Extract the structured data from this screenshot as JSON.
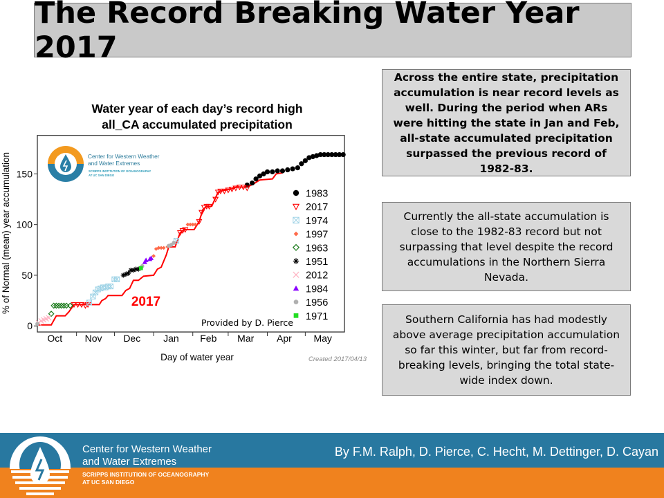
{
  "slide": {
    "title": "The Record Breaking Water Year 2017",
    "notes": [
      "Across the entire state, precipitation accumulation is near record levels as well. During the period when ARs were hitting the state in Jan and Feb, all-state accumulated precipitation surpassed the previous record of 1982-83.",
      "Currently the all-state accumulation is close to the 1982-83 record but not surpassing that level despite the record accumulations in the Northern Sierra Nevada.",
      "Southern California has had modestly above average precipitation accumulation so far this winter, but far from record-breaking levels, bringing the total state-wide index down."
    ]
  },
  "footer": {
    "org_line1": "Center for Western Weather",
    "org_line2": "and Water Extremes",
    "sub_line1": "SCRIPPS INSTITUTION OF OCEANOGRAPHY",
    "sub_line2": "AT UC SAN DIEGO",
    "authors": "By F.M. Ralph, D. Pierce, C. Hecht, M. Dettinger, D. Cayan",
    "colors": {
      "blue": "#2878a0",
      "orange": "#f0821e"
    }
  },
  "chart_logo": {
    "line1": "Center for Western Weather",
    "line2": "and Water Extremes",
    "line3": "SCRIPPS INSTITUTION OF OCEANOGRAPHY",
    "line4": "AT UC SAN DIEGO"
  },
  "chart_data": {
    "type": "line",
    "title_line1": "Water year of each day’s record high",
    "title_line2": "all_CA accumulated precipitation",
    "xlabel": "Day of water year",
    "ylabel": "% of Normal (mean) year accumulation",
    "xlim": [
      0,
      243
    ],
    "ylim": [
      -6,
      188
    ],
    "x_ticks": [
      {
        "label": "Oct",
        "day": 0
      },
      {
        "label": "Nov",
        "day": 31
      },
      {
        "label": "Dec",
        "day": 61
      },
      {
        "label": "Jan",
        "day": 92
      },
      {
        "label": "Feb",
        "day": 123
      },
      {
        "label": "Mar",
        "day": 151
      },
      {
        "label": "Apr",
        "day": 182
      },
      {
        "label": "May",
        "day": 212
      }
    ],
    "y_ticks": [
      0,
      50,
      100,
      150
    ],
    "grid": false,
    "legend_position": "right",
    "annotation_2017": "2017",
    "credit": "Provided by D. Pierce",
    "created": "Created 2017/04/13",
    "line_2017": {
      "color": "#ff0000",
      "points": [
        [
          0,
          1
        ],
        [
          11,
          1
        ],
        [
          15,
          10
        ],
        [
          22,
          10
        ],
        [
          25,
          14
        ],
        [
          29,
          21
        ],
        [
          49,
          21
        ],
        [
          51,
          25
        ],
        [
          54,
          27
        ],
        [
          56,
          30
        ],
        [
          67,
          30
        ],
        [
          70,
          35
        ],
        [
          73,
          37
        ],
        [
          76,
          45
        ],
        [
          80,
          45
        ],
        [
          84,
          49
        ],
        [
          92,
          50
        ],
        [
          95,
          56
        ],
        [
          98,
          58
        ],
        [
          102,
          70
        ],
        [
          104,
          78
        ],
        [
          109,
          78
        ],
        [
          113,
          92
        ],
        [
          116,
          95
        ],
        [
          124,
          95
        ],
        [
          128,
          103
        ],
        [
          131,
          115
        ],
        [
          134,
          118
        ],
        [
          138,
          118
        ],
        [
          143,
          132
        ],
        [
          145,
          133
        ],
        [
          153,
          135
        ],
        [
          158,
          137
        ],
        [
          166,
          137
        ],
        [
          171,
          140
        ],
        [
          176,
          144
        ],
        [
          186,
          145
        ],
        [
          189,
          150
        ],
        [
          194,
          151
        ]
      ]
    },
    "series": [
      {
        "name": "1983",
        "marker": "circle",
        "color": "#000000",
        "points": [
          [
            166,
            139
          ],
          [
            170,
            141
          ],
          [
            173,
            145
          ],
          [
            176,
            148
          ],
          [
            179,
            150
          ],
          [
            182,
            152
          ],
          [
            186,
            152
          ],
          [
            190,
            153
          ],
          [
            194,
            153
          ],
          [
            198,
            154
          ],
          [
            202,
            155
          ],
          [
            206,
            156
          ],
          [
            209,
            160
          ],
          [
            212,
            163
          ],
          [
            215,
            166
          ],
          [
            218,
            167
          ],
          [
            221,
            168
          ],
          [
            224,
            169
          ],
          [
            227,
            169
          ],
          [
            230,
            169
          ],
          [
            233,
            169
          ],
          [
            236,
            169
          ],
          [
            239,
            169
          ],
          [
            242,
            169
          ]
        ]
      },
      {
        "name": "2017",
        "marker": "triangle-down",
        "color": "#ff0000",
        "points": [
          [
            29,
            21
          ],
          [
            32,
            21
          ],
          [
            35,
            21
          ],
          [
            38,
            20
          ],
          [
            40,
            21
          ],
          [
            113,
            92
          ],
          [
            115,
            94
          ],
          [
            117,
            95
          ],
          [
            128,
            103
          ],
          [
            130,
            112
          ],
          [
            132,
            117
          ],
          [
            134,
            118
          ],
          [
            136,
            118
          ],
          [
            141,
            125
          ],
          [
            143,
            132
          ],
          [
            145,
            133
          ],
          [
            148,
            133
          ],
          [
            151,
            134
          ],
          [
            154,
            135
          ],
          [
            157,
            136
          ],
          [
            160,
            137
          ],
          [
            163,
            137
          ],
          [
            166,
            136
          ]
        ]
      },
      {
        "name": "1974",
        "marker": "boxed-x",
        "color": "#9fd3e6",
        "points": [
          [
            41,
            23
          ],
          [
            44,
            29
          ],
          [
            46,
            33
          ],
          [
            48,
            36
          ],
          [
            50,
            37
          ],
          [
            52,
            38
          ],
          [
            54,
            38
          ],
          [
            56,
            39
          ],
          [
            58,
            39
          ],
          [
            61,
            46
          ],
          [
            63,
            46
          ],
          [
            110,
            84
          ]
        ]
      },
      {
        "name": "1997",
        "marker": "diamond-small",
        "color": "#ff6a4a",
        "points": [
          [
            92,
            69
          ],
          [
            94,
            76
          ],
          [
            96,
            77
          ],
          [
            98,
            77
          ],
          [
            100,
            77
          ],
          [
            103,
            78
          ],
          [
            119,
            100
          ],
          [
            121,
            100
          ],
          [
            123,
            100
          ],
          [
            125,
            100
          ]
        ]
      },
      {
        "name": "1963",
        "marker": "diamond",
        "color": "#1a7a1a",
        "points": [
          [
            11,
            12
          ],
          [
            13,
            20
          ],
          [
            15,
            20
          ],
          [
            17,
            20
          ],
          [
            19,
            20
          ],
          [
            21,
            20
          ],
          [
            23,
            20
          ],
          [
            26,
            20
          ]
        ]
      },
      {
        "name": "1951",
        "marker": "asterisk",
        "color": "#000000",
        "points": [
          [
            68,
            50
          ],
          [
            70,
            51
          ],
          [
            72,
            52
          ],
          [
            74,
            55
          ],
          [
            76,
            55
          ],
          [
            78,
            56
          ],
          [
            80,
            56
          ]
        ]
      },
      {
        "name": "2012",
        "marker": "x",
        "color": "#ffb0c0",
        "points": [
          [
            1,
            3
          ],
          [
            3,
            5
          ],
          [
            5,
            6
          ],
          [
            7,
            7
          ],
          [
            9,
            8
          ]
        ]
      },
      {
        "name": "1984",
        "marker": "triangle-up",
        "color": "#8a00ff",
        "points": [
          [
            85,
            63
          ],
          [
            86,
            65
          ],
          [
            89,
            66
          ],
          [
            90,
            67
          ]
        ]
      },
      {
        "name": "1956",
        "marker": "circle-small",
        "color": "#b0b0b0",
        "points": [
          [
            0,
            2
          ],
          [
            83,
            59
          ],
          [
            104,
            79
          ],
          [
            106,
            80
          ],
          [
            108,
            82
          ]
        ]
      },
      {
        "name": "1971",
        "marker": "square",
        "color": "#22dd22",
        "points": [
          [
            82,
            57
          ]
        ]
      }
    ]
  }
}
